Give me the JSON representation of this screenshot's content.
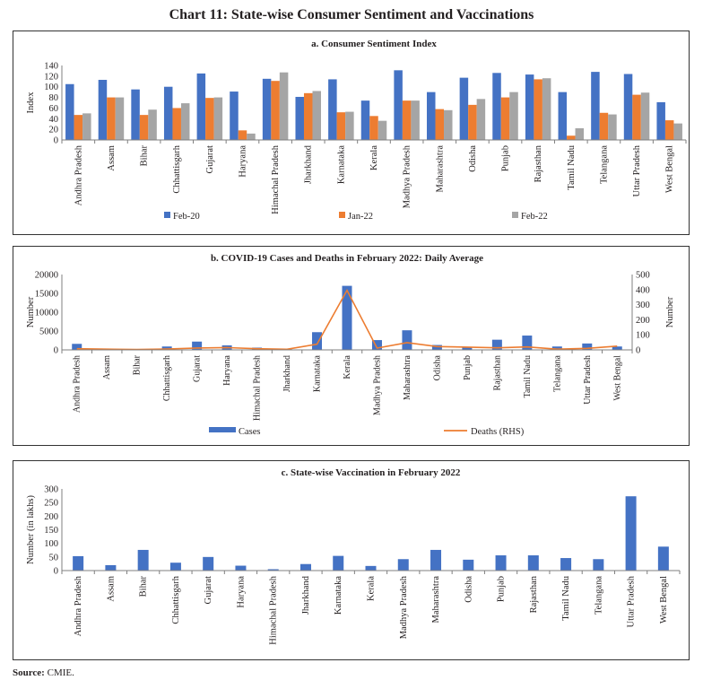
{
  "page": {
    "title": "Chart 11: State-wise Consumer Sentiment and Vaccinations",
    "source_label": "Source:",
    "source_text": "CMIE."
  },
  "colors": {
    "blue": "#4472c4",
    "orange": "#ed7d31",
    "grey": "#a5a5a5",
    "axis": "#7f7f7f"
  },
  "chart_data": [
    {
      "type": "bar",
      "title": "a. Consumer Sentiment Index",
      "ylabel": "Index",
      "ylim": [
        0,
        140
      ],
      "yticks": [
        0,
        20,
        40,
        60,
        80,
        100,
        120,
        140
      ],
      "categories": [
        "Andhra Pradesh",
        "Assam",
        "Bihar",
        "Chhattisgarh",
        "Gujarat",
        "Haryana",
        "Himachal Pradesh",
        "Jharkhand",
        "Karnataka",
        "Kerala",
        "Madhya Pradesh",
        "Maharashtra",
        "Odisha",
        "Punjab",
        "Rajasthan",
        "Tamil Nadu",
        "Telangana",
        "Uttar Pradesh",
        "West Bengal"
      ],
      "series": [
        {
          "name": "Feb-20",
          "color": "#4472c4",
          "values": [
            105,
            113,
            95,
            100,
            125,
            91,
            115,
            81,
            114,
            74,
            131,
            90,
            117,
            126,
            123,
            90,
            128,
            124,
            71
          ]
        },
        {
          "name": "Jan-22",
          "color": "#ed7d31",
          "values": [
            47,
            80,
            47,
            60,
            79,
            18,
            111,
            88,
            52,
            45,
            74,
            58,
            66,
            80,
            114,
            8,
            51,
            85,
            37
          ]
        },
        {
          "name": "Feb-22",
          "color": "#a5a5a5",
          "values": [
            50,
            80,
            57,
            69,
            80,
            12,
            127,
            92,
            53,
            36,
            74,
            56,
            77,
            90,
            116,
            22,
            48,
            89,
            31
          ]
        }
      ]
    },
    {
      "type": "bar+line",
      "title": "b. COVID-19 Cases and Deaths in February 2022: Daily Average",
      "ylabel": "Number",
      "ylabel_right": "Number",
      "ylim": [
        0,
        20000
      ],
      "yticks": [
        0,
        5000,
        10000,
        15000,
        20000
      ],
      "ylim_right": [
        0,
        500
      ],
      "yticks_right": [
        0,
        100,
        200,
        300,
        400,
        500
      ],
      "categories": [
        "Andhra Pradesh",
        "Assam",
        "Bihar",
        "Chhattisgarh",
        "Gujarat",
        "Haryana",
        "Himachal Pradesh",
        "Jharkhand",
        "Karnataka",
        "Kerala",
        "Madhya Pradesh",
        "Maharashtra",
        "Odisha",
        "Punjab",
        "Rajasthan",
        "Tamil Nadu",
        "Telangana",
        "Uttar Pradesh",
        "West Bengal"
      ],
      "series": [
        {
          "name": "Cases",
          "kind": "bar",
          "color": "#4472c4",
          "values": [
            1600,
            300,
            200,
            900,
            2200,
            1200,
            600,
            200,
            4700,
            17000,
            2600,
            5200,
            1300,
            700,
            2700,
            3800,
            900,
            1700,
            900
          ]
        },
        {
          "name": "Deaths (RHS)",
          "kind": "line",
          "axis": "right",
          "color": "#ed7d31",
          "values": [
            8,
            5,
            3,
            6,
            12,
            15,
            8,
            4,
            38,
            395,
            12,
            48,
            22,
            18,
            14,
            20,
            5,
            10,
            25
          ]
        }
      ]
    },
    {
      "type": "bar",
      "title": "c. State-wise Vaccination in February 2022",
      "ylabel": "Number (in lakhs)",
      "ylim": [
        0,
        300
      ],
      "yticks": [
        0,
        50,
        100,
        150,
        200,
        250,
        300
      ],
      "categories": [
        "Andhra Pradesh",
        "Assam",
        "Bihar",
        "Chhattisgarh",
        "Gujarat",
        "Haryana",
        "Himachal Pradesh",
        "Jharkhand",
        "Karnataka",
        "Kerala",
        "Madhya Pradesh",
        "Maharashtra",
        "Odisha",
        "Punjab",
        "Rajasthan",
        "Tamil Nadu",
        "Telangana",
        "Uttar Pradesh",
        "West Bengal"
      ],
      "series": [
        {
          "name": "Vaccinations",
          "color": "#4472c4",
          "values": [
            53,
            20,
            76,
            29,
            50,
            18,
            5,
            24,
            54,
            17,
            42,
            76,
            40,
            56,
            56,
            46,
            42,
            273,
            88
          ]
        }
      ]
    }
  ]
}
